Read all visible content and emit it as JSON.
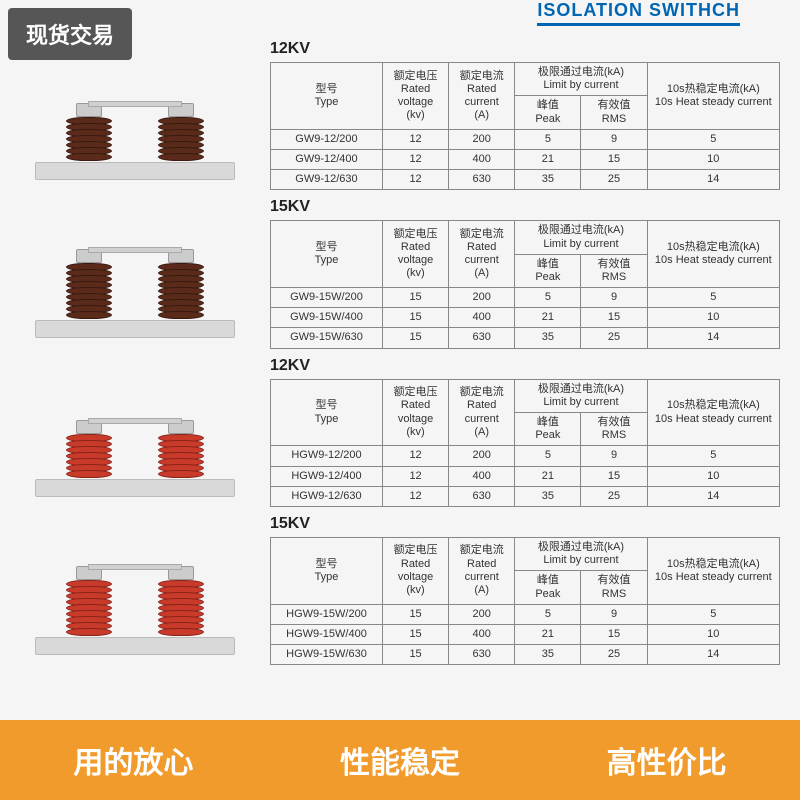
{
  "badge": "现货交易",
  "header_title": "ISOLATION SWITHCH",
  "columns": {
    "type_cn": "型号",
    "type_en": "Type",
    "voltage_cn": "额定电压",
    "voltage_en": "Rated voltage",
    "voltage_unit": "(kv)",
    "current_cn": "额定电流",
    "current_en": "Rated current",
    "current_unit": "(A)",
    "limit_cn": "极限通过电流(kA)",
    "limit_en": "Limit by current",
    "peak_cn": "峰值",
    "peak_en": "Peak",
    "rms_cn": "有效值",
    "rms_en": "RMS",
    "heat_cn": "10s热稳定电流(kA)",
    "heat_en": "10s Heat steady current"
  },
  "sections": [
    {
      "title": "12KV",
      "insulator_color": "brown",
      "disc_count": 7,
      "rows": [
        {
          "type": "GW9-12/200",
          "voltage": "12",
          "current": "200",
          "peak": "5",
          "rms": "9",
          "heat": "5"
        },
        {
          "type": "GW9-12/400",
          "voltage": "12",
          "current": "400",
          "peak": "21",
          "rms": "15",
          "heat": "10"
        },
        {
          "type": "GW9-12/630",
          "voltage": "12",
          "current": "630",
          "peak": "35",
          "rms": "25",
          "heat": "14"
        }
      ]
    },
    {
      "title": "15KV",
      "insulator_color": "brown",
      "disc_count": 9,
      "rows": [
        {
          "type": "GW9-15W/200",
          "voltage": "15",
          "current": "200",
          "peak": "5",
          "rms": "9",
          "heat": "5"
        },
        {
          "type": "GW9-15W/400",
          "voltage": "15",
          "current": "400",
          "peak": "21",
          "rms": "15",
          "heat": "10"
        },
        {
          "type": "GW9-15W/630",
          "voltage": "15",
          "current": "630",
          "peak": "35",
          "rms": "25",
          "heat": "14"
        }
      ]
    },
    {
      "title": "12KV",
      "insulator_color": "red",
      "disc_count": 7,
      "rows": [
        {
          "type": "HGW9-12/200",
          "voltage": "12",
          "current": "200",
          "peak": "5",
          "rms": "9",
          "heat": "5"
        },
        {
          "type": "HGW9-12/400",
          "voltage": "12",
          "current": "400",
          "peak": "21",
          "rms": "15",
          "heat": "10"
        },
        {
          "type": "HGW9-12/630",
          "voltage": "12",
          "current": "630",
          "peak": "35",
          "rms": "25",
          "heat": "14"
        }
      ]
    },
    {
      "title": "15KV",
      "insulator_color": "red",
      "disc_count": 9,
      "rows": [
        {
          "type": "HGW9-15W/200",
          "voltage": "15",
          "current": "200",
          "peak": "5",
          "rms": "9",
          "heat": "5"
        },
        {
          "type": "HGW9-15W/400",
          "voltage": "15",
          "current": "400",
          "peak": "21",
          "rms": "15",
          "heat": "10"
        },
        {
          "type": "HGW9-15W/630",
          "voltage": "15",
          "current": "630",
          "peak": "35",
          "rms": "25",
          "heat": "14"
        }
      ]
    }
  ],
  "bottom_bar": {
    "items": [
      "用的放心",
      "性能稳定",
      "高性价比"
    ],
    "bg_color": "#f19b2c",
    "text_color": "#ffffff",
    "font_size": 30
  },
  "colors": {
    "header_blue": "#0066b3",
    "table_border": "#888888",
    "insulator_brown": "#5a2a1a",
    "insulator_red": "#c83a2a",
    "base_gray": "#d9d9d9"
  }
}
